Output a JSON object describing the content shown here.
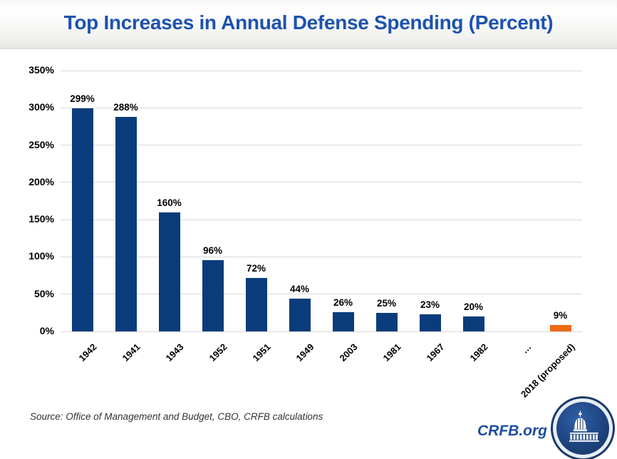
{
  "header": {
    "title": "Top Increases in Annual Defense Spending (Percent)"
  },
  "chart_data": {
    "type": "bar",
    "title": "Top Increases in Annual Defense Spending (Percent)",
    "categories": [
      "1942",
      "1941",
      "1943",
      "1952",
      "1951",
      "1949",
      "2003",
      "1981",
      "1967",
      "1982",
      "…",
      "2018 (proposed)"
    ],
    "values": [
      299,
      288,
      160,
      96,
      72,
      44,
      26,
      25,
      23,
      20,
      null,
      9
    ],
    "data_labels": [
      "299%",
      "288%",
      "160%",
      "96%",
      "72%",
      "44%",
      "26%",
      "25%",
      "23%",
      "20%",
      "",
      "9%"
    ],
    "xlabel": "",
    "ylabel": "",
    "ylim": [
      0,
      350
    ],
    "ytick_step": 50,
    "yticks": [
      "350%",
      "300%",
      "250%",
      "200%",
      "150%",
      "100%",
      "50%",
      "0%"
    ],
    "grid": true,
    "legend": false,
    "bar_color": "#0a3c7c",
    "highlight_index": 11,
    "highlight_color": "#ee6a13"
  },
  "footer": {
    "source": "Source: Office of Management and Budget, CBO, CRFB calculations",
    "brand": "CRFB.org"
  },
  "colors": {
    "title_blue": "#1d52ae",
    "brand_blue": "#1e4fa0",
    "bar_navy": "#0a3c7c",
    "bar_orange": "#ee6a13",
    "gridline": "#d9d9d9",
    "label_black": "#000000"
  }
}
